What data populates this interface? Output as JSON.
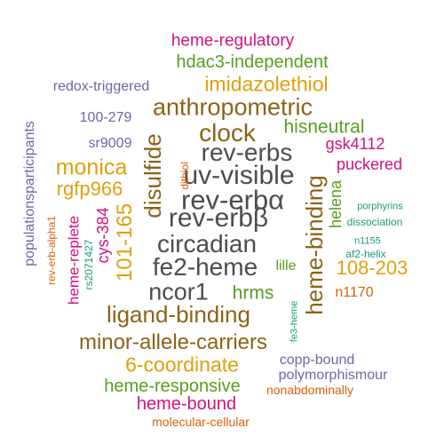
{
  "colors": {
    "dark_gray": "#4d4d4d",
    "brown": "#8a6418",
    "gold": "#e0a00e",
    "green": "#5a9d1e",
    "magenta": "#d4117a",
    "purple": "#6a67a8",
    "teal": "#1a9a7e",
    "orange": "#d9600c"
  },
  "words": [
    {
      "text": "heme-regulatory",
      "color": "magenta"
    },
    {
      "text": "hdac3-independent",
      "color": "green"
    },
    {
      "text": "redox-triggered",
      "color": "purple"
    },
    {
      "text": "imidazolethiol",
      "color": "gold"
    },
    {
      "text": "anthropometric",
      "color": "brown"
    },
    {
      "text": "populationsparticipants",
      "color": "purple"
    },
    {
      "text": "100-279",
      "color": "purple"
    },
    {
      "text": "clock",
      "color": "brown"
    },
    {
      "text": "hisneutral",
      "color": "green"
    },
    {
      "text": "rev-erbs",
      "color": "dark_gray"
    },
    {
      "text": "sr9009",
      "color": "purple"
    },
    {
      "text": "gsk4112",
      "color": "magenta"
    },
    {
      "text": "monica",
      "color": "gold"
    },
    {
      "text": "disulfide",
      "color": "brown"
    },
    {
      "text": "uv-visible",
      "color": "dark_gray"
    },
    {
      "text": "puckered",
      "color": "magenta"
    },
    {
      "text": "rgfp966",
      "color": "gold"
    },
    {
      "text": "dithiol",
      "color": "orange"
    },
    {
      "text": "heme-binding",
      "color": "brown"
    },
    {
      "text": "rev-erbα",
      "color": "dark_gray"
    },
    {
      "text": "helena",
      "color": "green"
    },
    {
      "text": "porphyrins",
      "color": "teal"
    },
    {
      "text": "dissociation",
      "color": "teal"
    },
    {
      "text": "cys-384",
      "color": "magenta"
    },
    {
      "text": "101-165",
      "color": "gold"
    },
    {
      "text": "rev-erb-alpha1",
      "color": "orange"
    },
    {
      "text": "heme-replete",
      "color": "magenta"
    },
    {
      "text": "rev-erbβ",
      "color": "dark_gray"
    },
    {
      "text": "n1155",
      "color": "teal"
    },
    {
      "text": "circadian",
      "color": "dark_gray"
    },
    {
      "text": "rs2071427",
      "color": "teal"
    },
    {
      "text": "af2-helix",
      "color": "teal"
    },
    {
      "text": "108-203",
      "color": "gold"
    },
    {
      "text": "fe2-heme",
      "color": "dark_gray"
    },
    {
      "text": "lille",
      "color": "green"
    },
    {
      "text": "ncor1",
      "color": "dark_gray"
    },
    {
      "text": "hrms",
      "color": "green"
    },
    {
      "text": "n1170",
      "color": "orange"
    },
    {
      "text": "fe3-heme",
      "color": "teal"
    },
    {
      "text": "ligand-binding",
      "color": "brown"
    },
    {
      "text": "minor-allele-carriers",
      "color": "brown"
    },
    {
      "text": "6-coordinate",
      "color": "gold"
    },
    {
      "text": "copp-bound",
      "color": "purple"
    },
    {
      "text": "heme-responsive",
      "color": "green"
    },
    {
      "text": "polymorphismour",
      "color": "purple"
    },
    {
      "text": "nonabdominally",
      "color": "orange"
    },
    {
      "text": "heme-bound",
      "color": "magenta"
    },
    {
      "text": "molecular-cellular",
      "color": "orange"
    }
  ]
}
